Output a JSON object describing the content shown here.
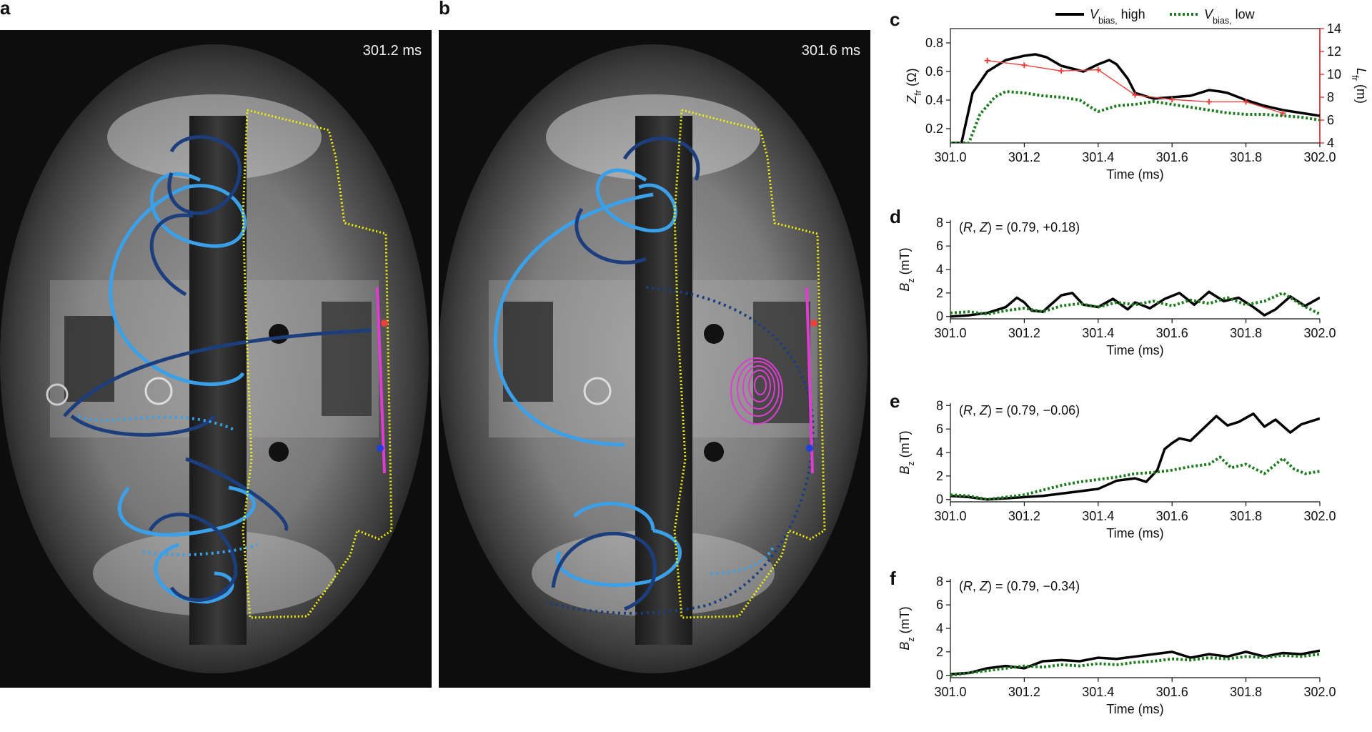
{
  "panels": {
    "a": {
      "letter": "a",
      "time": "301.2 ms"
    },
    "b": {
      "letter": "b",
      "time": "301.6 ms"
    }
  },
  "colors": {
    "v_high": "#000000",
    "v_low": "#1e7a1e",
    "length_series": "#e8403a",
    "axis_right": "#d81e1e",
    "helix_light": "#3aa0ea",
    "helix_dark": "#1c3e7c",
    "boundary": "#f2f200",
    "probe": "#e03cd2"
  },
  "chart_data": [
    {
      "id": "c",
      "letter": "c",
      "type": "line",
      "legend": [
        "V_bias, high",
        "V_bias, low"
      ],
      "legend_placement": "top",
      "xlabel": "Time (ms)",
      "ylabel": "Z_fr (Ω)",
      "y2label": "L_fr (m)",
      "xlim": [
        301.0,
        302.0
      ],
      "ylim": [
        0.1,
        0.9
      ],
      "y2lim": [
        4,
        14
      ],
      "xticks": [
        301.0,
        301.2,
        301.4,
        301.6,
        301.8,
        302.0
      ],
      "yticks": [
        0.2,
        0.4,
        0.6,
        0.8
      ],
      "y2ticks": [
        4,
        6,
        8,
        10,
        12,
        14
      ],
      "series": [
        {
          "name": "V_bias, high",
          "style": "solid",
          "x": [
            301.0,
            301.03,
            301.06,
            301.1,
            301.15,
            301.2,
            301.23,
            301.26,
            301.3,
            301.33,
            301.36,
            301.4,
            301.43,
            301.45,
            301.48,
            301.5,
            301.55,
            301.6,
            301.65,
            301.7,
            301.73,
            301.75,
            301.8,
            301.85,
            301.9,
            302.0
          ],
          "y": [
            0.1,
            0.1,
            0.45,
            0.6,
            0.68,
            0.71,
            0.72,
            0.7,
            0.64,
            0.62,
            0.6,
            0.65,
            0.68,
            0.65,
            0.55,
            0.45,
            0.41,
            0.42,
            0.43,
            0.47,
            0.46,
            0.45,
            0.4,
            0.36,
            0.33,
            0.29
          ]
        },
        {
          "name": "V_bias, low",
          "style": "dotted",
          "x": [
            301.0,
            301.05,
            301.08,
            301.12,
            301.15,
            301.2,
            301.25,
            301.3,
            301.35,
            301.38,
            301.4,
            301.45,
            301.5,
            301.55,
            301.6,
            301.65,
            301.7,
            301.75,
            301.8,
            301.85,
            301.9,
            301.95,
            302.0
          ],
          "y": [
            0.1,
            0.1,
            0.3,
            0.42,
            0.46,
            0.45,
            0.43,
            0.42,
            0.4,
            0.35,
            0.32,
            0.36,
            0.37,
            0.39,
            0.37,
            0.35,
            0.33,
            0.31,
            0.3,
            0.3,
            0.29,
            0.28,
            0.26
          ]
        },
        {
          "name": "L_fr",
          "axis": "right",
          "style": "markers",
          "x": [
            301.1,
            301.2,
            301.3,
            301.4,
            301.5,
            301.6,
            301.7,
            301.8,
            301.9
          ],
          "y": [
            11.2,
            10.8,
            10.3,
            10.4,
            8.2,
            7.8,
            7.6,
            7.6,
            6.6
          ]
        }
      ]
    },
    {
      "id": "d",
      "letter": "d",
      "type": "line",
      "annotation": "(R, Z) = (0.79, +0.18)",
      "xlabel": "Time (ms)",
      "ylabel": "B_z (mT)",
      "xlim": [
        301.0,
        302.0
      ],
      "ylim": [
        -0.2,
        8.2
      ],
      "xticks": [
        301.0,
        301.2,
        301.4,
        301.6,
        301.8,
        302.0
      ],
      "yticks": [
        0,
        2,
        4,
        6,
        8
      ],
      "series": [
        {
          "name": "V_bias, high",
          "style": "solid",
          "x": [
            301.0,
            301.05,
            301.1,
            301.15,
            301.18,
            301.2,
            301.22,
            301.25,
            301.3,
            301.33,
            301.36,
            301.4,
            301.44,
            301.48,
            301.5,
            301.54,
            301.58,
            301.62,
            301.66,
            301.7,
            301.74,
            301.78,
            301.82,
            301.85,
            301.88,
            301.92,
            301.96,
            302.0
          ],
          "y": [
            0.0,
            0.1,
            0.3,
            0.8,
            1.6,
            1.2,
            0.5,
            0.4,
            1.8,
            2.0,
            1.0,
            0.8,
            1.5,
            0.6,
            1.2,
            0.7,
            1.5,
            2.0,
            1.0,
            2.1,
            1.3,
            1.6,
            0.8,
            0.1,
            0.6,
            1.7,
            0.9,
            1.6
          ]
        },
        {
          "name": "V_bias, low",
          "style": "dotted",
          "x": [
            301.0,
            301.05,
            301.1,
            301.15,
            301.2,
            301.25,
            301.3,
            301.35,
            301.4,
            301.45,
            301.5,
            301.55,
            301.6,
            301.65,
            301.7,
            301.75,
            301.8,
            301.85,
            301.9,
            301.95,
            302.0
          ],
          "y": [
            0.3,
            0.4,
            0.2,
            0.5,
            0.7,
            0.4,
            0.9,
            1.1,
            0.8,
            1.2,
            1.0,
            1.3,
            0.9,
            1.4,
            1.1,
            1.6,
            1.0,
            1.3,
            2.0,
            1.0,
            0.2
          ]
        }
      ]
    },
    {
      "id": "e",
      "letter": "e",
      "type": "line",
      "annotation": "(R, Z) = (0.79, −0.06)",
      "xlabel": "Time (ms)",
      "ylabel": "B_z (mT)",
      "xlim": [
        301.0,
        302.0
      ],
      "ylim": [
        -0.2,
        8.2
      ],
      "xticks": [
        301.0,
        301.2,
        301.4,
        301.6,
        301.8,
        302.0
      ],
      "yticks": [
        0,
        2,
        4,
        6,
        8
      ],
      "series": [
        {
          "name": "V_bias, high",
          "style": "solid",
          "x": [
            301.0,
            301.05,
            301.1,
            301.15,
            301.2,
            301.25,
            301.3,
            301.35,
            301.4,
            301.45,
            301.5,
            301.53,
            301.56,
            301.58,
            301.6,
            301.62,
            301.65,
            301.68,
            301.72,
            301.75,
            301.78,
            301.82,
            301.85,
            301.88,
            301.92,
            301.95,
            302.0
          ],
          "y": [
            0.3,
            0.2,
            0.0,
            0.1,
            0.2,
            0.3,
            0.5,
            0.7,
            0.9,
            1.6,
            1.8,
            1.5,
            2.5,
            4.3,
            4.8,
            5.2,
            5.0,
            5.9,
            7.1,
            6.3,
            6.6,
            7.3,
            6.2,
            6.8,
            5.7,
            6.4,
            6.9
          ]
        },
        {
          "name": "V_bias, low",
          "style": "dotted",
          "x": [
            301.0,
            301.05,
            301.1,
            301.15,
            301.2,
            301.25,
            301.3,
            301.35,
            301.4,
            301.45,
            301.5,
            301.55,
            301.6,
            301.65,
            301.7,
            301.73,
            301.76,
            301.8,
            301.85,
            301.9,
            301.93,
            301.96,
            302.0
          ],
          "y": [
            0.4,
            0.3,
            0.0,
            0.2,
            0.4,
            0.8,
            1.2,
            1.5,
            1.7,
            1.9,
            2.2,
            2.3,
            2.5,
            2.8,
            3.0,
            3.6,
            2.7,
            3.0,
            2.2,
            3.5,
            2.6,
            2.2,
            2.4
          ]
        }
      ]
    },
    {
      "id": "f",
      "letter": "f",
      "type": "line",
      "annotation": "(R, Z) = (0.79, −0.34)",
      "xlabel": "Time (ms)",
      "ylabel": "B_z (mT)",
      "xlim": [
        301.0,
        302.0
      ],
      "ylim": [
        -0.2,
        8.2
      ],
      "xticks": [
        301.0,
        301.2,
        301.4,
        301.6,
        301.8,
        302.0
      ],
      "yticks": [
        0,
        2,
        4,
        6,
        8
      ],
      "series": [
        {
          "name": "V_bias, high",
          "style": "solid",
          "x": [
            301.0,
            301.05,
            301.1,
            301.15,
            301.2,
            301.25,
            301.3,
            301.35,
            301.4,
            301.45,
            301.5,
            301.55,
            301.6,
            301.65,
            301.7,
            301.75,
            301.8,
            301.85,
            301.9,
            301.95,
            302.0
          ],
          "y": [
            0.1,
            0.2,
            0.6,
            0.8,
            0.6,
            1.2,
            1.3,
            1.2,
            1.5,
            1.4,
            1.6,
            1.8,
            2.0,
            1.5,
            1.8,
            1.6,
            2.0,
            1.6,
            1.9,
            1.8,
            2.1
          ]
        },
        {
          "name": "V_bias, low",
          "style": "dotted",
          "x": [
            301.0,
            301.05,
            301.1,
            301.15,
            301.2,
            301.25,
            301.3,
            301.35,
            301.4,
            301.45,
            301.5,
            301.55,
            301.6,
            301.65,
            301.7,
            301.75,
            301.8,
            301.85,
            301.9,
            301.95,
            302.0
          ],
          "y": [
            0.0,
            0.2,
            0.4,
            0.6,
            0.8,
            0.7,
            0.9,
            0.8,
            1.0,
            0.9,
            1.1,
            1.2,
            1.4,
            1.3,
            1.5,
            1.4,
            1.6,
            1.5,
            1.7,
            1.6,
            1.8
          ]
        }
      ]
    }
  ]
}
